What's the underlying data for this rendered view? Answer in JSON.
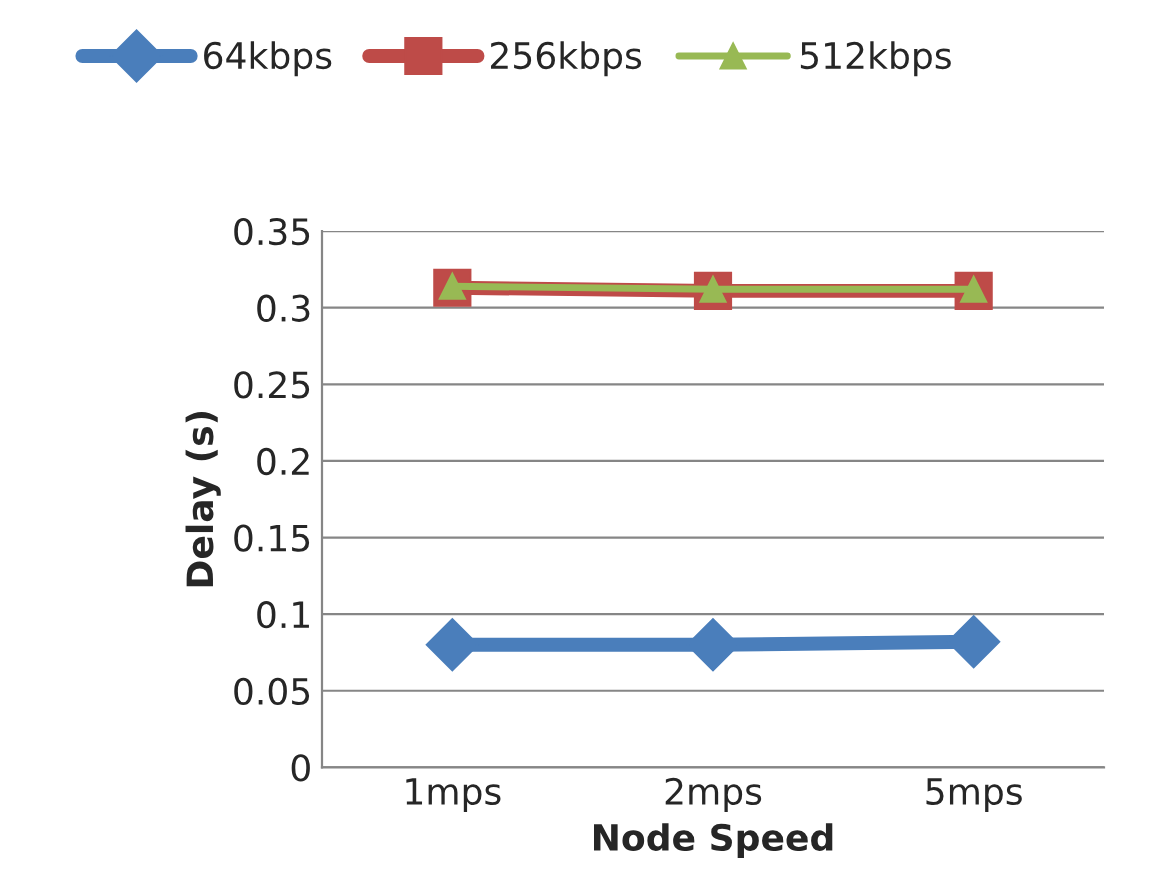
{
  "chart_data": {
    "type": "line",
    "xlabel": "Node Speed",
    "ylabel": "Delay (s)",
    "categories": [
      "1mps",
      "2mps",
      "5mps"
    ],
    "series": [
      {
        "name": "64kbps",
        "color": "#4a7ebb",
        "values": [
          0.08,
          0.08,
          0.082
        ],
        "marker": "diamond"
      },
      {
        "name": "256kbps",
        "color": "#be4b48",
        "values": [
          0.313,
          0.311,
          0.311
        ],
        "marker": "square"
      },
      {
        "name": "512kbps",
        "color": "#98b954",
        "values": [
          0.314,
          0.312,
          0.312
        ],
        "marker": "triangle"
      }
    ],
    "ylim": [
      0,
      0.35
    ],
    "yticks": [
      {
        "value": 0,
        "label": "0"
      },
      0.05,
      0.1,
      0.15,
      0.2,
      0.25,
      0.3,
      0.35
    ],
    "grid": "y",
    "legend": "top",
    "line_style": "solid"
  }
}
